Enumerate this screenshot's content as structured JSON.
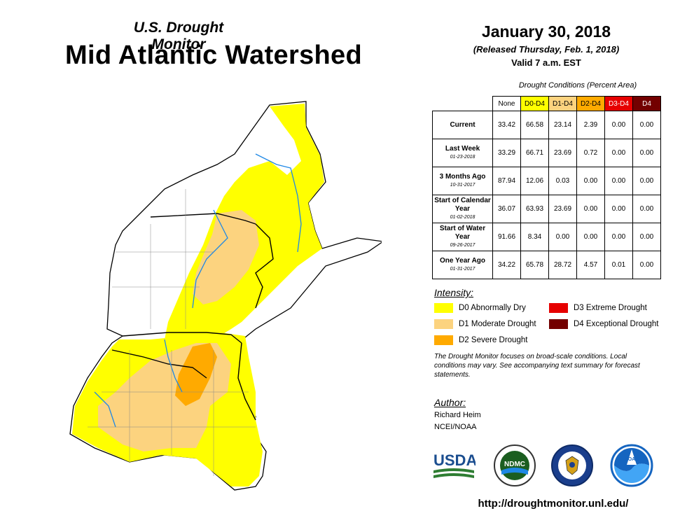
{
  "header": {
    "subtitle": "U.S. Drought Monitor",
    "title": "Mid Atlantic Watershed",
    "date": "January 30, 2018",
    "released": "(Released Thursday, Feb. 1, 2018)",
    "valid": "Valid 7 a.m. EST"
  },
  "table": {
    "caption": "Drought Conditions (Percent Area)",
    "columns": [
      "None",
      "D0-D4",
      "D1-D4",
      "D2-D4",
      "D3-D4",
      "D4"
    ],
    "column_colors": [
      "#ffffff",
      "#ffff00",
      "#fcd37f",
      "#ffaa00",
      "#e60000",
      "#730000"
    ],
    "rows": [
      {
        "label": "Current",
        "sub": "",
        "values": [
          "33.42",
          "66.58",
          "23.14",
          "2.39",
          "0.00",
          "0.00"
        ]
      },
      {
        "label": "Last Week",
        "sub": "01-23-2018",
        "values": [
          "33.29",
          "66.71",
          "23.69",
          "0.72",
          "0.00",
          "0.00"
        ]
      },
      {
        "label": "3 Months Ago",
        "sub": "10-31-2017",
        "values": [
          "87.94",
          "12.06",
          "0.03",
          "0.00",
          "0.00",
          "0.00"
        ]
      },
      {
        "label": "Start of Calendar Year",
        "sub": "01-02-2018",
        "values": [
          "36.07",
          "63.93",
          "23.69",
          "0.00",
          "0.00",
          "0.00"
        ]
      },
      {
        "label": "Start of Water Year",
        "sub": "09-26-2017",
        "values": [
          "91.66",
          "8.34",
          "0.00",
          "0.00",
          "0.00",
          "0.00"
        ]
      },
      {
        "label": "One Year Ago",
        "sub": "01-31-2017",
        "values": [
          "34.22",
          "65.78",
          "28.72",
          "4.57",
          "0.01",
          "0.00"
        ]
      }
    ]
  },
  "legend": {
    "title": "Intensity:",
    "items": [
      {
        "label": "D0 Abnormally Dry",
        "color": "#ffff00"
      },
      {
        "label": "D1 Moderate Drought",
        "color": "#fcd37f"
      },
      {
        "label": "D2 Severe Drought",
        "color": "#ffaa00"
      },
      {
        "label": "D3 Extreme Drought",
        "color": "#e60000"
      },
      {
        "label": "D4 Exceptional Drought",
        "color": "#730000"
      }
    ]
  },
  "note": "The Drought Monitor focuses on broad-scale conditions. Local conditions may vary. See accompanying text summary for forecast statements.",
  "author": {
    "title": "Author:",
    "name": "Richard Heim",
    "org": "NCEI/NOAA"
  },
  "logos": {
    "usda": "USDA",
    "ndmc": "NDMC",
    "noaa": "NOAA"
  },
  "url": "http://droughtmonitor.unl.edu/"
}
